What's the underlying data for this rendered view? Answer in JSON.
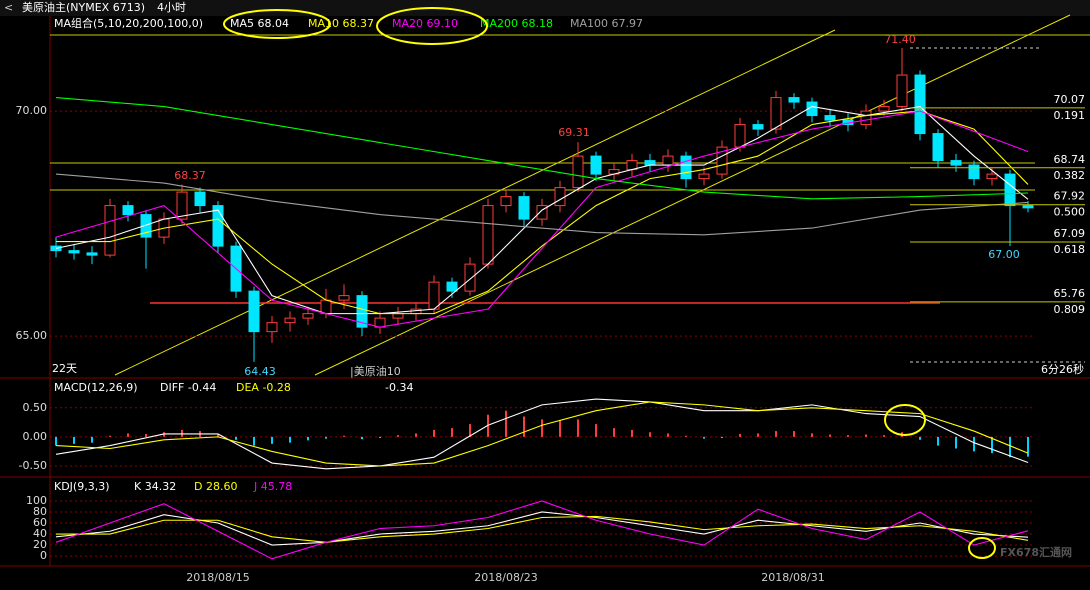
{
  "header": {
    "symbol": "美原油主(NYMEX 6713)",
    "period": "4小时"
  },
  "chart_data": [
    {
      "type": "candlestick",
      "title": "MA组合(5,10,20,200,100,0)",
      "up_color": "#ff3c3c",
      "down_color": "#00e6ff",
      "ylim": [
        64.07,
        71.69
      ],
      "yticks": [
        {
          "value": 70,
          "label": "70.00"
        },
        {
          "value": 65,
          "label": "65.00"
        }
      ],
      "ohlc": [
        [
          67.0,
          67.2,
          66.75,
          66.9
        ],
        [
          66.9,
          67.05,
          66.7,
          66.85
        ],
        [
          66.85,
          67.0,
          66.6,
          66.8
        ],
        [
          66.8,
          68.05,
          66.75,
          67.9
        ],
        [
          67.9,
          68.0,
          67.55,
          67.7
        ],
        [
          67.7,
          67.8,
          66.5,
          67.2
        ],
        [
          67.2,
          67.75,
          67.05,
          67.6
        ],
        [
          67.6,
          68.37,
          67.5,
          68.2
        ],
        [
          68.2,
          68.3,
          67.75,
          67.9
        ],
        [
          67.9,
          68.0,
          66.85,
          67.0
        ],
        [
          67.0,
          67.1,
          65.85,
          66.0
        ],
        [
          66.0,
          66.1,
          64.43,
          65.1
        ],
        [
          65.1,
          65.45,
          64.85,
          65.3
        ],
        [
          65.3,
          65.55,
          65.1,
          65.4
        ],
        [
          65.4,
          65.65,
          65.25,
          65.5
        ],
        [
          65.5,
          66.05,
          65.4,
          65.8
        ],
        [
          65.8,
          66.15,
          65.6,
          65.9
        ],
        [
          65.9,
          66.0,
          65.0,
          65.2
        ],
        [
          65.2,
          65.55,
          65.05,
          65.4
        ],
        [
          65.4,
          65.65,
          65.25,
          65.5
        ],
        [
          65.5,
          65.75,
          65.35,
          65.6
        ],
        [
          65.6,
          66.35,
          65.5,
          66.2
        ],
        [
          66.2,
          66.3,
          65.85,
          66.0
        ],
        [
          66.0,
          66.75,
          65.9,
          66.6
        ],
        [
          66.6,
          68.05,
          66.5,
          67.9
        ],
        [
          67.9,
          68.25,
          67.75,
          68.1
        ],
        [
          68.1,
          68.2,
          67.45,
          67.6
        ],
        [
          67.6,
          68.05,
          67.45,
          67.9
        ],
        [
          67.9,
          68.45,
          67.75,
          68.3
        ],
        [
          68.3,
          69.31,
          68.2,
          69.0
        ],
        [
          69.0,
          69.1,
          68.45,
          68.6
        ],
        [
          68.6,
          68.85,
          68.45,
          68.7
        ],
        [
          68.7,
          69.05,
          68.55,
          68.9
        ],
        [
          68.9,
          69.05,
          68.65,
          68.8
        ],
        [
          68.8,
          69.15,
          68.65,
          69.0
        ],
        [
          69.0,
          69.1,
          68.3,
          68.5
        ],
        [
          68.5,
          68.75,
          68.35,
          68.6
        ],
        [
          68.6,
          69.35,
          68.5,
          69.2
        ],
        [
          69.2,
          69.85,
          69.1,
          69.7
        ],
        [
          69.7,
          69.8,
          69.45,
          69.6
        ],
        [
          69.6,
          70.45,
          69.5,
          70.3
        ],
        [
          70.3,
          70.4,
          70.05,
          70.2
        ],
        [
          70.2,
          70.3,
          69.75,
          69.9
        ],
        [
          69.9,
          70.05,
          69.65,
          69.8
        ],
        [
          69.8,
          69.95,
          69.55,
          69.7
        ],
        [
          69.7,
          70.15,
          69.6,
          70.0
        ],
        [
          70.0,
          70.25,
          69.9,
          70.1
        ],
        [
          70.1,
          71.4,
          70.0,
          70.8
        ],
        [
          70.8,
          70.9,
          69.35,
          69.5
        ],
        [
          69.5,
          69.6,
          68.75,
          68.9
        ],
        [
          68.9,
          69.05,
          68.65,
          68.8
        ],
        [
          68.8,
          68.9,
          68.35,
          68.5
        ],
        [
          68.5,
          68.75,
          68.35,
          68.6
        ],
        [
          68.6,
          68.7,
          67.0,
          67.9
        ],
        [
          67.9,
          68.0,
          67.75,
          67.85
        ]
      ],
      "series": [
        {
          "name": "MA5",
          "legend": "MA5 68.04",
          "color": "#ffffff",
          "x": [
            0,
            3,
            6,
            9,
            12,
            15,
            18,
            21,
            24,
            27,
            30,
            33,
            36,
            39,
            42,
            45,
            48,
            51,
            54
          ],
          "values": [
            66.95,
            67.2,
            67.6,
            67.8,
            65.9,
            65.5,
            65.5,
            65.6,
            66.6,
            67.8,
            68.5,
            68.8,
            68.8,
            69.4,
            70.1,
            69.9,
            70.1,
            69.0,
            68.04
          ]
        },
        {
          "name": "MA10",
          "legend": "MA10 68.37",
          "color": "#ffff00",
          "x": [
            0,
            3,
            6,
            9,
            12,
            15,
            18,
            21,
            24,
            27,
            30,
            33,
            36,
            39,
            42,
            45,
            48,
            51,
            54
          ],
          "values": [
            67.1,
            67.1,
            67.4,
            67.6,
            66.6,
            65.8,
            65.5,
            65.5,
            66.0,
            67.0,
            67.9,
            68.5,
            68.7,
            69.0,
            69.7,
            69.9,
            70.0,
            69.6,
            68.37
          ]
        },
        {
          "name": "MA20",
          "legend": "MA20 69.10",
          "color": "#ff00ff",
          "x": [
            0,
            6,
            12,
            18,
            24,
            30,
            36,
            42,
            48,
            54
          ],
          "values": [
            67.2,
            67.9,
            65.8,
            65.2,
            65.6,
            68.3,
            69.0,
            69.6,
            70.0,
            69.1
          ]
        },
        {
          "name": "MA200",
          "legend": "MA200 68.18",
          "color": "#00ff00",
          "x": [
            0,
            6,
            12,
            18,
            24,
            30,
            36,
            42,
            48,
            54
          ],
          "values": [
            70.3,
            70.1,
            69.7,
            69.3,
            68.9,
            68.5,
            68.2,
            68.05,
            68.1,
            68.18
          ]
        },
        {
          "name": "MA100",
          "legend": "MA100 67.97",
          "color": "#a0a0a0",
          "x": [
            0,
            6,
            12,
            18,
            24,
            30,
            36,
            42,
            48,
            54
          ],
          "values": [
            68.6,
            68.4,
            68.0,
            67.7,
            67.5,
            67.3,
            67.25,
            67.4,
            67.8,
            67.97
          ]
        }
      ],
      "fib_levels": [
        {
          "value": 70.07,
          "ratio": "0.191"
        },
        {
          "value": 68.74,
          "ratio": "0.382"
        },
        {
          "value": 67.92,
          "ratio": "0.500"
        },
        {
          "value": 67.09,
          "ratio": "0.618"
        },
        {
          "value": 65.76,
          "ratio": "0.809"
        }
      ],
      "price_labels": [
        "68.37",
        "69.31",
        "71.40",
        "64.43",
        "67.00"
      ],
      "notes": [
        "22天",
        "|美原油10",
        "6分26秒"
      ]
    },
    {
      "type": "macd",
      "title": "MACD(12,26,9)",
      "ylim": [
        -0.69,
        0.72
      ],
      "yticks": [
        {
          "value": 0.5,
          "label": "0.50"
        },
        {
          "value": 0,
          "label": "0.00"
        },
        {
          "value": -0.5,
          "label": "-0.50"
        }
      ],
      "histogram": [
        -0.15,
        -0.12,
        -0.1,
        0.02,
        0.06,
        0.05,
        0.08,
        0.12,
        0.1,
        0.04,
        -0.05,
        -0.15,
        -0.12,
        -0.1,
        -0.06,
        -0.03,
        0.02,
        -0.04,
        -0.02,
        0.03,
        0.06,
        0.12,
        0.15,
        0.22,
        0.38,
        0.45,
        0.35,
        0.3,
        0.28,
        0.3,
        0.22,
        0.15,
        0.12,
        0.08,
        0.06,
        0.02,
        -0.03,
        -0.02,
        0.05,
        0.06,
        0.1,
        0.1,
        0.06,
        0.04,
        0.03,
        0.04,
        0.03,
        0.08,
        -0.05,
        -0.15,
        -0.2,
        -0.25,
        -0.28,
        -0.35,
        -0.34
      ],
      "up_color": "#ff3c3c",
      "down_color": "#00d2ff",
      "series": [
        {
          "name": "DIFF",
          "legend": "DIFF -0.44",
          "color": "#ffffff",
          "x": [
            0,
            3,
            6,
            9,
            12,
            15,
            18,
            21,
            24,
            27,
            30,
            33,
            36,
            39,
            42,
            45,
            48,
            51,
            54
          ],
          "values": [
            -0.3,
            -0.15,
            0.05,
            0.05,
            -0.45,
            -0.55,
            -0.5,
            -0.35,
            0.2,
            0.55,
            0.65,
            0.6,
            0.45,
            0.45,
            0.55,
            0.4,
            0.35,
            -0.1,
            -0.44
          ]
        },
        {
          "name": "DEA",
          "legend": "DEA -0.28",
          "color": "#ffff00",
          "x": [
            0,
            3,
            6,
            9,
            12,
            15,
            18,
            21,
            24,
            27,
            30,
            33,
            36,
            39,
            42,
            45,
            48,
            51,
            54
          ],
          "values": [
            -0.15,
            -0.2,
            -0.05,
            0.0,
            -0.25,
            -0.45,
            -0.5,
            -0.45,
            -0.15,
            0.2,
            0.45,
            0.6,
            0.55,
            0.45,
            0.5,
            0.45,
            0.4,
            0.1,
            -0.28
          ]
        }
      ]
    },
    {
      "type": "kdj",
      "title": "KDJ(9,3,3)",
      "ylim": [
        -18,
        138
      ],
      "yticks": [
        100,
        80,
        60,
        40,
        20,
        0
      ],
      "series": [
        {
          "name": "K",
          "legend": "K 34.32",
          "color": "#ffffff",
          "x": [
            0,
            3,
            6,
            9,
            12,
            15,
            18,
            21,
            24,
            27,
            30,
            33,
            36,
            39,
            42,
            45,
            48,
            51,
            54
          ],
          "values": [
            35,
            45,
            75,
            60,
            20,
            25,
            40,
            45,
            55,
            80,
            70,
            55,
            40,
            65,
            55,
            45,
            60,
            40,
            34.32
          ]
        },
        {
          "name": "D",
          "legend": "D 28.60",
          "color": "#ffff00",
          "x": [
            0,
            3,
            6,
            9,
            12,
            15,
            18,
            21,
            24,
            27,
            30,
            33,
            36,
            39,
            42,
            45,
            48,
            51,
            54
          ],
          "values": [
            40,
            40,
            65,
            65,
            35,
            25,
            35,
            40,
            50,
            70,
            72,
            62,
            48,
            55,
            58,
            50,
            55,
            45,
            28.6
          ]
        },
        {
          "name": "J",
          "legend": "J 45.78",
          "color": "#ff00ff",
          "x": [
            0,
            3,
            6,
            9,
            12,
            15,
            18,
            21,
            24,
            27,
            30,
            33,
            36,
            39,
            42,
            45,
            48,
            51,
            54
          ],
          "values": [
            25,
            60,
            95,
            45,
            -5,
            25,
            50,
            55,
            70,
            100,
            65,
            40,
            20,
            85,
            50,
            30,
            80,
            20,
            45.78
          ]
        }
      ],
      "x_labels": [
        "2018/08/15",
        "2018/08/23",
        "2018/08/31"
      ],
      "watermark": "FX678汇通网"
    }
  ]
}
